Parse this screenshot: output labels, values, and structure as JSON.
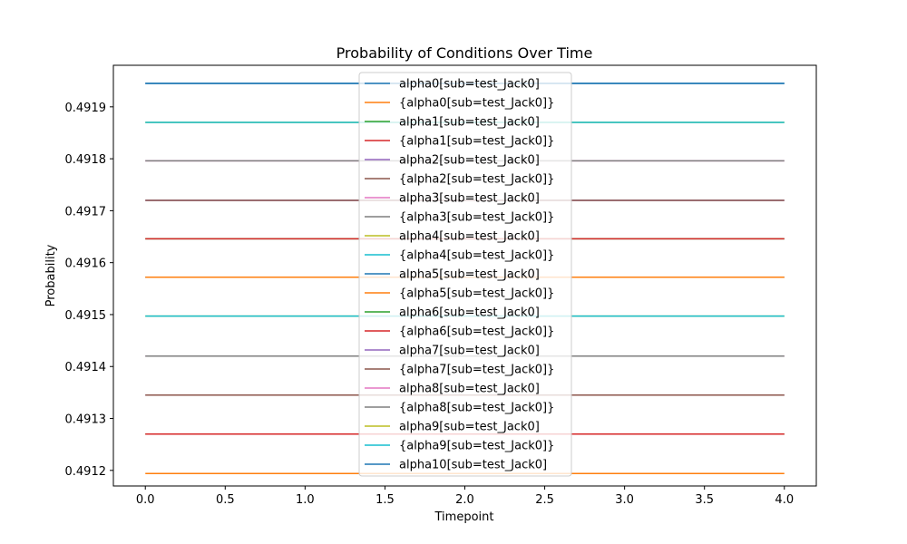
{
  "chart_data": {
    "type": "line",
    "title": "Probability of Conditions Over Time",
    "xlabel": "Timepoint",
    "ylabel": "Probability",
    "xlim": [
      -0.2,
      4.2
    ],
    "ylim": [
      0.49117,
      0.49198
    ],
    "x_ticks": [
      0.0,
      0.5,
      1.0,
      1.5,
      2.0,
      2.5,
      3.0,
      3.5,
      4.0
    ],
    "x_tick_labels": [
      "0.0",
      "0.5",
      "1.0",
      "1.5",
      "2.0",
      "2.5",
      "3.0",
      "3.5",
      "4.0"
    ],
    "y_ticks": [
      0.4912,
      0.4913,
      0.4914,
      0.4915,
      0.4916,
      0.4917,
      0.4918,
      0.4919
    ],
    "y_tick_labels": [
      "0.4912",
      "0.4913",
      "0.4914",
      "0.4915",
      "0.4916",
      "0.4917",
      "0.4918",
      "0.4919"
    ],
    "grid": false,
    "legend_position": "top-center",
    "x": [
      0,
      1,
      2,
      3,
      4
    ],
    "series": [
      {
        "name": "alpha0[sub=test_Jack0]",
        "color": "#1f77b4",
        "values": [
          0.491945,
          0.491945,
          0.491945,
          0.491945,
          0.491945
        ]
      },
      {
        "name": "{alpha0[sub=test_Jack0]}",
        "color": "#ff7f0e",
        "values": [
          0.491194,
          0.491194,
          0.491194,
          0.491194,
          0.491194
        ]
      },
      {
        "name": "alpha1[sub=test_Jack0]",
        "color": "#2ca02c",
        "values": [
          0.49127,
          0.49127,
          0.49127,
          0.49127,
          0.49127
        ]
      },
      {
        "name": "{alpha1[sub=test_Jack0]}",
        "color": "#d62728",
        "values": [
          0.49127,
          0.49127,
          0.49127,
          0.49127,
          0.49127
        ]
      },
      {
        "name": "alpha2[sub=test_Jack0]",
        "color": "#9467bd",
        "values": [
          0.491345,
          0.491345,
          0.491345,
          0.491345,
          0.491345
        ]
      },
      {
        "name": "{alpha2[sub=test_Jack0]}",
        "color": "#8c564b",
        "values": [
          0.491345,
          0.491345,
          0.491345,
          0.491345,
          0.491345
        ]
      },
      {
        "name": "alpha3[sub=test_Jack0]",
        "color": "#e377c2",
        "values": [
          0.49142,
          0.49142,
          0.49142,
          0.49142,
          0.49142
        ]
      },
      {
        "name": "{alpha3[sub=test_Jack0]}",
        "color": "#7f7f7f",
        "values": [
          0.49142,
          0.49142,
          0.49142,
          0.49142,
          0.49142
        ]
      },
      {
        "name": "alpha4[sub=test_Jack0]",
        "color": "#bcbd22",
        "values": [
          0.491497,
          0.491497,
          0.491497,
          0.491497,
          0.491497
        ]
      },
      {
        "name": "{alpha4[sub=test_Jack0]}",
        "color": "#17becf",
        "values": [
          0.491497,
          0.491497,
          0.491497,
          0.491497,
          0.491497
        ]
      },
      {
        "name": "alpha5[sub=test_Jack0]",
        "color": "#1f77b4",
        "values": [
          0.491572,
          0.491572,
          0.491572,
          0.491572,
          0.491572
        ]
      },
      {
        "name": "{alpha5[sub=test_Jack0]}",
        "color": "#ff7f0e",
        "values": [
          0.491572,
          0.491572,
          0.491572,
          0.491572,
          0.491572
        ]
      },
      {
        "name": "alpha6[sub=test_Jack0]",
        "color": "#2ca02c",
        "values": [
          0.491646,
          0.491646,
          0.491646,
          0.491646,
          0.491646
        ]
      },
      {
        "name": "{alpha6[sub=test_Jack0]}",
        "color": "#d62728",
        "values": [
          0.491646,
          0.491646,
          0.491646,
          0.491646,
          0.491646
        ]
      },
      {
        "name": "alpha7[sub=test_Jack0]",
        "color": "#9467bd",
        "values": [
          0.49172,
          0.49172,
          0.49172,
          0.49172,
          0.49172
        ]
      },
      {
        "name": "{alpha7[sub=test_Jack0]}",
        "color": "#8c564b",
        "values": [
          0.49172,
          0.49172,
          0.49172,
          0.49172,
          0.49172
        ]
      },
      {
        "name": "alpha8[sub=test_Jack0]",
        "color": "#e377c2",
        "values": [
          0.491796,
          0.491796,
          0.491796,
          0.491796,
          0.491796
        ]
      },
      {
        "name": "{alpha8[sub=test_Jack0]}",
        "color": "#7f7f7f",
        "values": [
          0.491796,
          0.491796,
          0.491796,
          0.491796,
          0.491796
        ]
      },
      {
        "name": "alpha9[sub=test_Jack0]",
        "color": "#bcbd22",
        "values": [
          0.49187,
          0.49187,
          0.49187,
          0.49187,
          0.49187
        ]
      },
      {
        "name": "{alpha9[sub=test_Jack0]}",
        "color": "#17becf",
        "values": [
          0.49187,
          0.49187,
          0.49187,
          0.49187,
          0.49187
        ]
      },
      {
        "name": "alpha10[sub=test_Jack0]",
        "color": "#1f77b4",
        "values": [
          0.491945,
          0.491945,
          0.491945,
          0.491945,
          0.491945
        ]
      }
    ]
  }
}
